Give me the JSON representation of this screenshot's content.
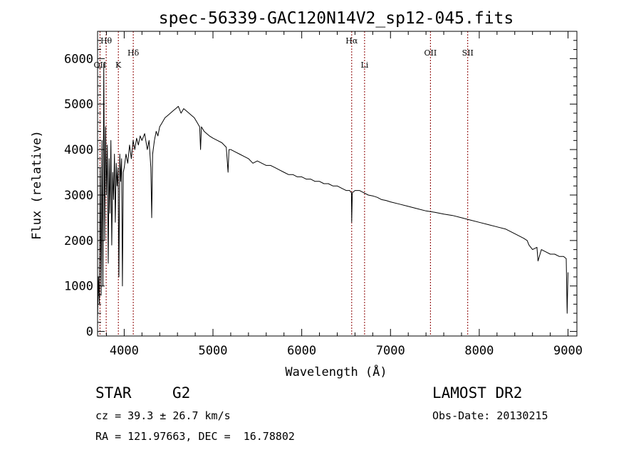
{
  "chart_data": {
    "type": "line",
    "title": "spec-56339-GAC120N14V2_sp12-045.fits",
    "xlabel": "Wavelength (Å)",
    "ylabel": "Flux (relative)",
    "xlim": [
      3700,
      9100
    ],
    "ylim": [
      -100,
      6600
    ],
    "xticks": [
      4000,
      5000,
      6000,
      7000,
      8000,
      9000
    ],
    "yticks": [
      0,
      1000,
      2000,
      3000,
      4000,
      5000,
      6000
    ],
    "grid": false,
    "series": [
      {
        "x": [
          3700,
          3710,
          3720,
          3730,
          3740,
          3750,
          3760,
          3770,
          3780,
          3790,
          3800,
          3810,
          3820,
          3830,
          3840,
          3850,
          3860,
          3870,
          3880,
          3890,
          3900,
          3910,
          3920,
          3930,
          3940,
          3950,
          3960,
          3970,
          3980,
          3990,
          4000,
          4020,
          4040,
          4060,
          4080,
          4100,
          4120,
          4140,
          4160,
          4180,
          4200,
          4230,
          4260,
          4280,
          4300,
          4310,
          4320,
          4340,
          4360,
          4380,
          4400,
          4430,
          4460,
          4490,
          4520,
          4550,
          4580,
          4610,
          4640,
          4670,
          4700,
          4730,
          4760,
          4790,
          4820,
          4850,
          4860,
          4870,
          4900,
          4930,
          4960,
          5000,
          5050,
          5100,
          5150,
          5170,
          5180,
          5200,
          5250,
          5300,
          5350,
          5400,
          5450,
          5500,
          5550,
          5600,
          5650,
          5700,
          5750,
          5800,
          5850,
          5900,
          5950,
          6000,
          6050,
          6100,
          6150,
          6200,
          6250,
          6300,
          6350,
          6400,
          6450,
          6500,
          6540,
          6560,
          6563,
          6570,
          6600,
          6650,
          6700,
          6750,
          6800,
          6850,
          6900,
          6950,
          7000,
          7100,
          7200,
          7300,
          7400,
          7500,
          7600,
          7700,
          7800,
          7900,
          8000,
          8100,
          8200,
          8300,
          8400,
          8500,
          8540,
          8560,
          8600,
          8650,
          8662,
          8700,
          8750,
          8800,
          8850,
          8900,
          8950,
          8980,
          8990,
          9000
        ],
        "values": [
          300,
          1200,
          600,
          3600,
          800,
          4200,
          1000,
          5900,
          2000,
          4500,
          3000,
          4100,
          1500,
          3800,
          2600,
          4200,
          1900,
          3500,
          2900,
          3900,
          2400,
          3700,
          3200,
          3600,
          1200,
          3900,
          3300,
          3800,
          1000,
          3500,
          3600,
          3900,
          3700,
          4100,
          3800,
          4200,
          4000,
          4250,
          4100,
          4300,
          4200,
          4350,
          4000,
          4200,
          3600,
          2500,
          3900,
          4200,
          4400,
          4300,
          4500,
          4600,
          4700,
          4750,
          4800,
          4850,
          4900,
          4950,
          4800,
          4900,
          4850,
          4800,
          4750,
          4700,
          4600,
          4500,
          4000,
          4500,
          4400,
          4350,
          4300,
          4250,
          4200,
          4150,
          4050,
          3500,
          4000,
          4000,
          3950,
          3900,
          3850,
          3800,
          3700,
          3750,
          3700,
          3650,
          3650,
          3600,
          3550,
          3500,
          3450,
          3450,
          3400,
          3400,
          3350,
          3350,
          3300,
          3300,
          3250,
          3250,
          3200,
          3200,
          3150,
          3100,
          3100,
          3050,
          2400,
          3050,
          3100,
          3100,
          3050,
          3000,
          2980,
          2950,
          2900,
          2880,
          2850,
          2800,
          2750,
          2700,
          2650,
          2620,
          2580,
          2550,
          2500,
          2450,
          2400,
          2350,
          2300,
          2250,
          2150,
          2050,
          2000,
          1900,
          1800,
          1850,
          1550,
          1800,
          1750,
          1700,
          1700,
          1650,
          1650,
          1600,
          400,
          1300
        ]
      }
    ],
    "lines": [
      {
        "x": 3727,
        "label": "OII",
        "row": 2
      },
      {
        "x": 3797,
        "label": "Hθ",
        "row": 0
      },
      {
        "x": 3934,
        "label": "K",
        "row": 2
      },
      {
        "x": 4102,
        "label": "Hδ",
        "row": 1
      },
      {
        "x": 6563,
        "label": "Hα",
        "row": 0
      },
      {
        "x": 6708,
        "label": "Li",
        "row": 2
      },
      {
        "x": 7450,
        "label": "OII",
        "row": 1
      },
      {
        "x": 7870,
        "label": "SII",
        "row": 1
      }
    ],
    "line_color": "#8b0000"
  },
  "info": {
    "class_label": "STAR",
    "subclass": "G2",
    "redshift": "cz = 39.3 ± 26.7 km/s",
    "coords": "RA = 121.97663, DEC =  16.78802",
    "survey": "LAMOST DR2",
    "obs_date": "Obs-Date: 20130215"
  }
}
